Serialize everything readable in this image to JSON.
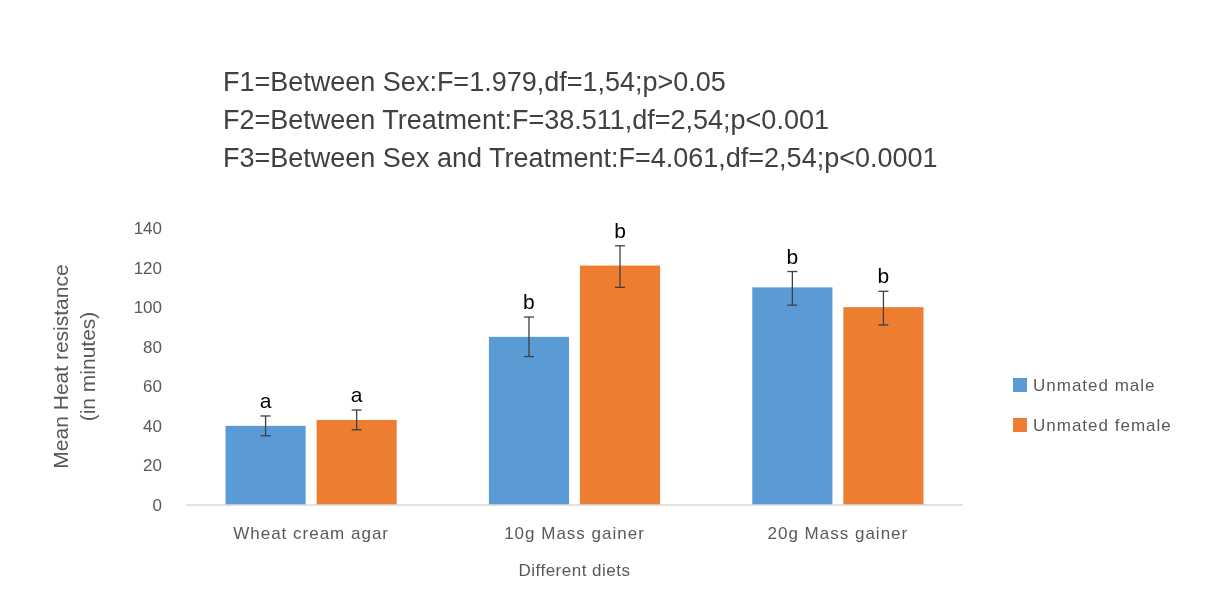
{
  "chart_data": {
    "type": "bar",
    "annotations": [
      "F1=Between Sex:F=1.979,df=1,54;p>0.05",
      "F2=Between Treatment:F=38.511,df=2,54;p<0.001",
      "F3=Between Sex and Treatment:F=4.061,df=2,54;p<0.0001"
    ],
    "xlabel": "Different diets",
    "ylabel": "Mean Heat resistance (in minutes)",
    "categories": [
      "Wheat cream agar",
      "10g Mass gainer",
      "20g Mass gainer"
    ],
    "series": [
      {
        "name": "Unmated male",
        "color": "#5b9bd5",
        "values": [
          40,
          85,
          110
        ],
        "errors": [
          5,
          10,
          [
            101,
            118
          ]
        ],
        "value_labels": [
          "a",
          "b",
          "b"
        ]
      },
      {
        "name": "Unmated female",
        "color": "#ed7d31",
        "values": [
          43,
          121,
          100
        ],
        "errors": [
          5,
          [
            110,
            131
          ],
          [
            91,
            108
          ]
        ],
        "value_labels": [
          "a",
          "b",
          "b"
        ]
      }
    ],
    "ylim": [
      0,
      140
    ],
    "yticks": [
      0,
      20,
      40,
      60,
      80,
      100,
      120,
      140
    ],
    "grid": false,
    "legend": "right"
  }
}
